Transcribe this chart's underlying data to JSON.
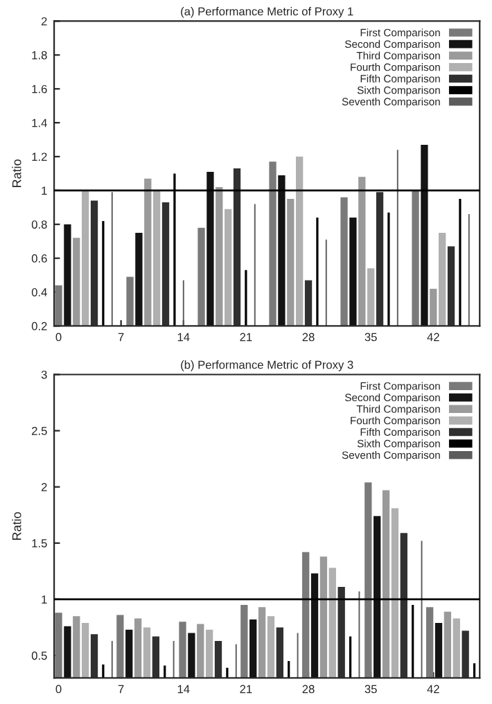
{
  "chart_data": [
    {
      "type": "bar",
      "title": "(a) Performance Metric of Proxy 1",
      "ylabel": "Ratio",
      "xlim": [
        -0.5,
        47.2
      ],
      "xticks": [
        0,
        7,
        14,
        21,
        28,
        35,
        42
      ],
      "ylim": [
        0.2,
        2
      ],
      "yticks": [
        0.2,
        0.4,
        0.6,
        0.8,
        1,
        1.2,
        1.4,
        1.6,
        1.8,
        2
      ],
      "legend": "top right",
      "grid": false,
      "ref_lines": [
        {
          "axis": "y",
          "value": 1,
          "color": "#000000"
        }
      ],
      "series": [
        {
          "name": "First Comparison",
          "color": "#7a7a7a",
          "x": [
            0,
            8,
            16,
            24,
            32,
            40
          ],
          "values": [
            0.44,
            0.49,
            0.78,
            1.17,
            0.96,
            1.0
          ]
        },
        {
          "name": "Second Comparison",
          "color": "#141414",
          "x": [
            1,
            9,
            17,
            25,
            33,
            41
          ],
          "values": [
            0.8,
            0.75,
            1.11,
            1.09,
            0.84,
            1.27
          ]
        },
        {
          "name": "Third Comparison",
          "color": "#9a9a9a",
          "x": [
            2,
            10,
            18,
            26,
            34,
            42
          ],
          "values": [
            0.72,
            1.07,
            1.02,
            0.95,
            1.08,
            0.42
          ]
        },
        {
          "name": "Fourth Comparison",
          "color": "#b0b0b0",
          "x": [
            3,
            11,
            19,
            27,
            35,
            43
          ],
          "values": [
            1.0,
            1.0,
            0.89,
            1.2,
            0.54,
            0.75
          ]
        },
        {
          "name": "Fifth Comparison",
          "color": "#303030",
          "x": [
            4,
            12,
            20,
            28,
            36,
            44
          ],
          "values": [
            0.94,
            0.93,
            1.13,
            0.47,
            0.99,
            0.67
          ]
        },
        {
          "name": "Sixth Comparison",
          "color": "#000000",
          "x": [
            5,
            13,
            21,
            29,
            37,
            45
          ],
          "values": [
            0.82,
            1.1,
            0.53,
            0.84,
            0.87,
            0.95
          ]
        },
        {
          "name": "Seventh Comparison",
          "color": "#5c5c5c",
          "x": [
            6,
            14,
            22,
            30,
            38,
            46
          ],
          "values": [
            0.99,
            0.47,
            0.92,
            0.71,
            1.24,
            0.86
          ]
        }
      ]
    },
    {
      "type": "bar",
      "title": "(b) Performance Metric of Proxy 3",
      "ylabel": "Ratio",
      "xlim": [
        -0.5,
        47.2
      ],
      "xticks": [
        0,
        7,
        14,
        21,
        28,
        35,
        42
      ],
      "ylim": [
        0.3,
        3
      ],
      "yticks": [
        0.5,
        1,
        1.5,
        2,
        2.5,
        3
      ],
      "legend": "top right",
      "grid": false,
      "ref_lines": [
        {
          "axis": "y",
          "value": 1,
          "color": "#000000"
        }
      ],
      "series": [
        {
          "name": "First Comparison",
          "color": "#7a7a7a",
          "x": [
            0,
            6.9,
            13.9,
            20.8,
            27.7,
            34.7,
            41.6
          ],
          "values": [
            0.88,
            0.86,
            0.8,
            0.95,
            1.42,
            2.04,
            0.93
          ]
        },
        {
          "name": "Second Comparison",
          "color": "#141414",
          "x": [
            1,
            7.9,
            14.9,
            21.8,
            28.7,
            35.7,
            42.6
          ],
          "values": [
            0.76,
            0.73,
            0.7,
            0.82,
            1.23,
            1.74,
            0.79
          ]
        },
        {
          "name": "Third Comparison",
          "color": "#9a9a9a",
          "x": [
            2,
            8.9,
            15.9,
            22.8,
            29.7,
            36.7,
            43.6
          ],
          "values": [
            0.85,
            0.83,
            0.78,
            0.93,
            1.38,
            1.97,
            0.89
          ]
        },
        {
          "name": "Fourth Comparison",
          "color": "#b0b0b0",
          "x": [
            3,
            9.9,
            16.9,
            23.8,
            30.7,
            37.7,
            44.6
          ],
          "values": [
            0.79,
            0.75,
            0.73,
            0.85,
            1.28,
            1.81,
            0.83
          ]
        },
        {
          "name": "Fifth Comparison",
          "color": "#303030",
          "x": [
            4,
            10.9,
            17.9,
            24.8,
            31.7,
            38.7,
            45.6
          ],
          "values": [
            0.69,
            0.67,
            0.63,
            0.75,
            1.11,
            1.59,
            0.72
          ]
        },
        {
          "name": "Sixth Comparison",
          "color": "#000000",
          "x": [
            5,
            11.9,
            18.9,
            25.8,
            32.7,
            39.7,
            46.6
          ],
          "values": [
            0.42,
            0.41,
            0.39,
            0.45,
            0.67,
            0.95,
            0.43
          ]
        },
        {
          "name": "Seventh Comparison",
          "color": "#5c5c5c",
          "x": [
            6,
            12.9,
            19.9,
            26.8,
            33.7,
            40.7
          ],
          "values": [
            0.63,
            0.63,
            0.6,
            0.7,
            1.07,
            1.52
          ]
        }
      ]
    }
  ]
}
